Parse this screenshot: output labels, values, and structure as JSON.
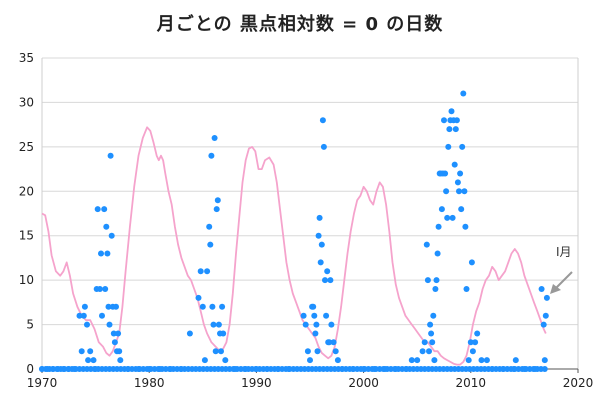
{
  "chart_data": {
    "type": "scatter",
    "title": "月ごとの 黒点相対数 = 0 の日数",
    "xlabel": "",
    "ylabel": "",
    "xlim": [
      1970,
      2020
    ],
    "ylim": [
      0,
      35
    ],
    "xticks": [
      "1970",
      "1980",
      "1990",
      "2000",
      "2010",
      "2020"
    ],
    "yticks": [
      "0",
      "5",
      "10",
      "15",
      "20",
      "25",
      "30",
      "35"
    ],
    "grid": "horizontal",
    "legend": "none",
    "annotation": "I月",
    "series": [
      {
        "kind": "points",
        "color": "#1e90ff",
        "points": [
          [
            1973.5,
            6
          ],
          [
            1973.7,
            2
          ],
          [
            1973.9,
            6
          ],
          [
            1974.0,
            7
          ],
          [
            1974.2,
            5
          ],
          [
            1974.3,
            1
          ],
          [
            1974.5,
            2
          ],
          [
            1974.8,
            1
          ],
          [
            1975.0,
            0
          ],
          [
            1975.1,
            9
          ],
          [
            1975.2,
            18
          ],
          [
            1975.4,
            9
          ],
          [
            1975.5,
            13
          ],
          [
            1975.6,
            6
          ],
          [
            1975.8,
            18
          ],
          [
            1975.9,
            9
          ],
          [
            1976.0,
            16
          ],
          [
            1976.1,
            13
          ],
          [
            1976.2,
            7
          ],
          [
            1976.3,
            5
          ],
          [
            1976.4,
            24
          ],
          [
            1976.5,
            15
          ],
          [
            1976.6,
            7
          ],
          [
            1976.7,
            4
          ],
          [
            1976.8,
            3
          ],
          [
            1976.9,
            7
          ],
          [
            1977.0,
            2
          ],
          [
            1977.1,
            4
          ],
          [
            1977.2,
            2
          ],
          [
            1977.3,
            1
          ],
          [
            1983.8,
            4
          ],
          [
            1984.6,
            8
          ],
          [
            1984.8,
            11
          ],
          [
            1985.0,
            7
          ],
          [
            1985.2,
            1
          ],
          [
            1985.4,
            11
          ],
          [
            1985.6,
            16
          ],
          [
            1985.7,
            14
          ],
          [
            1985.8,
            24
          ],
          [
            1985.9,
            7
          ],
          [
            1986.0,
            5
          ],
          [
            1986.1,
            26
          ],
          [
            1986.2,
            2
          ],
          [
            1986.3,
            18
          ],
          [
            1986.4,
            19
          ],
          [
            1986.5,
            5
          ],
          [
            1986.6,
            4
          ],
          [
            1986.7,
            2
          ],
          [
            1986.8,
            7
          ],
          [
            1986.9,
            4
          ],
          [
            1987.1,
            1
          ],
          [
            1994.4,
            6
          ],
          [
            1994.6,
            5
          ],
          [
            1994.8,
            2
          ],
          [
            1995.0,
            1
          ],
          [
            1995.2,
            7
          ],
          [
            1995.3,
            7
          ],
          [
            1995.4,
            6
          ],
          [
            1995.5,
            4
          ],
          [
            1995.6,
            5
          ],
          [
            1995.7,
            2
          ],
          [
            1995.8,
            15
          ],
          [
            1995.9,
            17
          ],
          [
            1996.0,
            12
          ],
          [
            1996.1,
            14
          ],
          [
            1996.2,
            28
          ],
          [
            1996.3,
            25
          ],
          [
            1996.4,
            10
          ],
          [
            1996.5,
            6
          ],
          [
            1996.6,
            11
          ],
          [
            1996.7,
            3
          ],
          [
            1996.8,
            3
          ],
          [
            1996.9,
            10
          ],
          [
            1997.0,
            5
          ],
          [
            1997.2,
            3
          ],
          [
            1997.4,
            2
          ],
          [
            1997.6,
            1
          ],
          [
            2004.5,
            1
          ],
          [
            2005.0,
            1
          ],
          [
            2005.5,
            2
          ],
          [
            2005.7,
            3
          ],
          [
            2005.9,
            14
          ],
          [
            2006.0,
            10
          ],
          [
            2006.1,
            2
          ],
          [
            2006.2,
            5
          ],
          [
            2006.3,
            4
          ],
          [
            2006.4,
            3
          ],
          [
            2006.5,
            6
          ],
          [
            2006.6,
            1
          ],
          [
            2006.7,
            9
          ],
          [
            2006.8,
            10
          ],
          [
            2006.9,
            13
          ],
          [
            2007.0,
            16
          ],
          [
            2007.1,
            22
          ],
          [
            2007.2,
            22
          ],
          [
            2007.3,
            18
          ],
          [
            2007.4,
            22
          ],
          [
            2007.5,
            28
          ],
          [
            2007.6,
            22
          ],
          [
            2007.7,
            20
          ],
          [
            2007.8,
            17
          ],
          [
            2007.9,
            25
          ],
          [
            2008.0,
            27
          ],
          [
            2008.1,
            28
          ],
          [
            2008.2,
            29
          ],
          [
            2008.3,
            17
          ],
          [
            2008.4,
            28
          ],
          [
            2008.5,
            23
          ],
          [
            2008.6,
            27
          ],
          [
            2008.7,
            28
          ],
          [
            2008.8,
            21
          ],
          [
            2008.9,
            20
          ],
          [
            2009.0,
            22
          ],
          [
            2009.1,
            18
          ],
          [
            2009.2,
            25
          ],
          [
            2009.3,
            31
          ],
          [
            2009.4,
            20
          ],
          [
            2009.5,
            16
          ],
          [
            2009.6,
            9
          ],
          [
            2009.8,
            1
          ],
          [
            2010.0,
            3
          ],
          [
            2010.1,
            12
          ],
          [
            2010.2,
            2
          ],
          [
            2010.4,
            3
          ],
          [
            2010.6,
            4
          ],
          [
            2011.0,
            1
          ],
          [
            2011.5,
            1
          ],
          [
            2012.0,
            0
          ],
          [
            2014.2,
            1
          ],
          [
            2016.6,
            9
          ],
          [
            2016.8,
            5
          ],
          [
            2016.9,
            1
          ],
          [
            2017.0,
            6
          ],
          [
            2017.1,
            8
          ],
          [
            1970.0,
            0
          ],
          [
            1970.5,
            0
          ],
          [
            1971.0,
            0
          ],
          [
            1971.5,
            0
          ],
          [
            1972.0,
            0
          ],
          [
            1972.5,
            0
          ],
          [
            1973.0,
            0
          ],
          [
            1978.0,
            0
          ],
          [
            1979.0,
            0
          ],
          [
            1980.0,
            0
          ],
          [
            1981.0,
            0
          ],
          [
            1982.0,
            0
          ],
          [
            1983.0,
            0
          ],
          [
            1988.0,
            0
          ],
          [
            1989.0,
            0
          ],
          [
            1990.0,
            0
          ],
          [
            1991.0,
            0
          ],
          [
            1992.0,
            0
          ],
          [
            1993.0,
            0
          ],
          [
            1998.0,
            0
          ],
          [
            1999.0,
            0
          ],
          [
            2000.0,
            0
          ],
          [
            2001.0,
            0
          ],
          [
            2002.0,
            0
          ],
          [
            2003.0,
            0
          ],
          [
            2004.0,
            0
          ],
          [
            2013.0,
            0
          ],
          [
            2014.0,
            0
          ],
          [
            2015.0,
            0
          ],
          [
            2016.0,
            0
          ]
        ]
      },
      {
        "kind": "line",
        "color": "#f5a3cc",
        "points": [
          [
            1970.0,
            17.5
          ],
          [
            1970.3,
            17.3
          ],
          [
            1970.6,
            15.5
          ],
          [
            1970.9,
            12.8
          ],
          [
            1971.3,
            11.0
          ],
          [
            1971.7,
            10.5
          ],
          [
            1972.0,
            11.0
          ],
          [
            1972.3,
            12.0
          ],
          [
            1972.6,
            10.5
          ],
          [
            1972.9,
            8.5
          ],
          [
            1973.3,
            7.0
          ],
          [
            1973.7,
            6.0
          ],
          [
            1974.1,
            5.5
          ],
          [
            1974.5,
            5.5
          ],
          [
            1974.9,
            4.5
          ],
          [
            1975.3,
            3.0
          ],
          [
            1975.7,
            2.5
          ],
          [
            1976.0,
            1.8
          ],
          [
            1976.3,
            1.5
          ],
          [
            1976.6,
            2.0
          ],
          [
            1976.9,
            3.0
          ],
          [
            1977.2,
            4.0
          ],
          [
            1977.5,
            7.0
          ],
          [
            1977.8,
            11.0
          ],
          [
            1978.2,
            16.0
          ],
          [
            1978.6,
            20.5
          ],
          [
            1979.0,
            24.0
          ],
          [
            1979.4,
            26.0
          ],
          [
            1979.8,
            27.2
          ],
          [
            1980.1,
            26.8
          ],
          [
            1980.4,
            25.5
          ],
          [
            1980.7,
            24.0
          ],
          [
            1980.9,
            23.5
          ],
          [
            1981.1,
            24.0
          ],
          [
            1981.3,
            23.5
          ],
          [
            1981.5,
            22.0
          ],
          [
            1981.8,
            20.0
          ],
          [
            1982.1,
            18.5
          ],
          [
            1982.4,
            16.0
          ],
          [
            1982.7,
            14.0
          ],
          [
            1983.0,
            12.5
          ],
          [
            1983.3,
            11.5
          ],
          [
            1983.6,
            10.5
          ],
          [
            1983.9,
            10.0
          ],
          [
            1984.2,
            9.0
          ],
          [
            1984.5,
            8.0
          ],
          [
            1984.8,
            6.5
          ],
          [
            1985.1,
            5.0
          ],
          [
            1985.4,
            4.0
          ],
          [
            1985.8,
            3.0
          ],
          [
            1986.2,
            2.5
          ],
          [
            1986.6,
            2.0
          ],
          [
            1986.9,
            2.3
          ],
          [
            1987.2,
            3.0
          ],
          [
            1987.5,
            5.0
          ],
          [
            1987.8,
            8.5
          ],
          [
            1988.1,
            13.0
          ],
          [
            1988.4,
            17.0
          ],
          [
            1988.7,
            21.0
          ],
          [
            1989.0,
            23.5
          ],
          [
            1989.3,
            24.8
          ],
          [
            1989.6,
            25.0
          ],
          [
            1989.9,
            24.5
          ],
          [
            1990.2,
            22.5
          ],
          [
            1990.5,
            22.5
          ],
          [
            1990.8,
            23.5
          ],
          [
            1991.2,
            23.8
          ],
          [
            1991.6,
            23.0
          ],
          [
            1991.9,
            21.0
          ],
          [
            1992.2,
            18.0
          ],
          [
            1992.5,
            15.0
          ],
          [
            1992.8,
            12.0
          ],
          [
            1993.1,
            10.0
          ],
          [
            1993.4,
            8.5
          ],
          [
            1993.7,
            7.5
          ],
          [
            1994.0,
            6.5
          ],
          [
            1994.3,
            5.5
          ],
          [
            1994.6,
            5.0
          ],
          [
            1994.9,
            4.5
          ],
          [
            1995.2,
            4.0
          ],
          [
            1995.5,
            3.5
          ],
          [
            1995.8,
            2.5
          ],
          [
            1996.1,
            1.8
          ],
          [
            1996.4,
            1.5
          ],
          [
            1996.7,
            1.2
          ],
          [
            1997.0,
            1.5
          ],
          [
            1997.3,
            2.5
          ],
          [
            1997.6,
            4.5
          ],
          [
            1997.9,
            7.0
          ],
          [
            1998.2,
            10.0
          ],
          [
            1998.5,
            13.0
          ],
          [
            1998.8,
            15.5
          ],
          [
            1999.1,
            17.5
          ],
          [
            1999.4,
            19.0
          ],
          [
            1999.7,
            19.5
          ],
          [
            2000.0,
            20.5
          ],
          [
            2000.3,
            20.0
          ],
          [
            2000.6,
            19.0
          ],
          [
            2000.9,
            18.5
          ],
          [
            2001.2,
            20.0
          ],
          [
            2001.5,
            21.0
          ],
          [
            2001.8,
            20.5
          ],
          [
            2002.1,
            18.5
          ],
          [
            2002.4,
            15.5
          ],
          [
            2002.7,
            12.0
          ],
          [
            2003.0,
            9.5
          ],
          [
            2003.3,
            8.0
          ],
          [
            2003.6,
            7.0
          ],
          [
            2003.9,
            6.0
          ],
          [
            2004.2,
            5.5
          ],
          [
            2004.5,
            5.0
          ],
          [
            2004.8,
            4.5
          ],
          [
            2005.1,
            4.0
          ],
          [
            2005.4,
            3.5
          ],
          [
            2005.7,
            3.0
          ],
          [
            2006.0,
            3.0
          ],
          [
            2006.3,
            2.5
          ],
          [
            2006.6,
            2.0
          ],
          [
            2006.9,
            2.0
          ],
          [
            2007.2,
            1.5
          ],
          [
            2007.5,
            1.2
          ],
          [
            2007.8,
            1.0
          ],
          [
            2008.1,
            0.8
          ],
          [
            2008.4,
            0.6
          ],
          [
            2008.7,
            0.5
          ],
          [
            2009.0,
            0.5
          ],
          [
            2009.3,
            0.8
          ],
          [
            2009.6,
            1.5
          ],
          [
            2009.9,
            3.0
          ],
          [
            2010.2,
            5.0
          ],
          [
            2010.5,
            6.5
          ],
          [
            2010.8,
            7.5
          ],
          [
            2011.1,
            9.0
          ],
          [
            2011.4,
            10.0
          ],
          [
            2011.7,
            10.5
          ],
          [
            2012.0,
            11.5
          ],
          [
            2012.3,
            11.0
          ],
          [
            2012.6,
            10.0
          ],
          [
            2012.9,
            10.5
          ],
          [
            2013.2,
            11.0
          ],
          [
            2013.5,
            12.0
          ],
          [
            2013.8,
            13.0
          ],
          [
            2014.1,
            13.5
          ],
          [
            2014.4,
            13.0
          ],
          [
            2014.7,
            12.0
          ],
          [
            2015.0,
            10.5
          ],
          [
            2015.3,
            9.5
          ],
          [
            2015.6,
            8.5
          ],
          [
            2015.9,
            7.5
          ],
          [
            2016.2,
            6.5
          ],
          [
            2016.5,
            5.5
          ],
          [
            2016.8,
            4.5
          ],
          [
            2017.0,
            4.0
          ]
        ]
      }
    ]
  }
}
